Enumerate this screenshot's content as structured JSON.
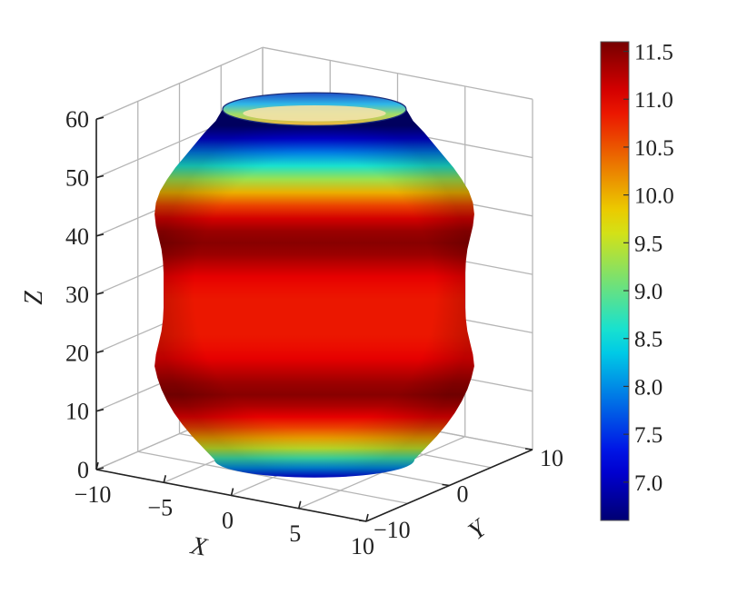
{
  "chart_data": {
    "type": "surface3d",
    "title": "",
    "xlabel": "X",
    "ylabel": "Y",
    "zlabel": "Z",
    "x_ticks": [
      "−10",
      "−5",
      "0",
      "5",
      "10"
    ],
    "y_ticks": [
      "−10",
      "0",
      "10"
    ],
    "z_ticks": [
      "0",
      "10",
      "20",
      "30",
      "40",
      "50",
      "60"
    ],
    "xlim": [
      -10,
      10
    ],
    "ylim": [
      -10,
      10
    ],
    "zlim": [
      0,
      60
    ],
    "grid": true,
    "colormap": "jet",
    "color_range": [
      6.6,
      11.6
    ],
    "colorbar_ticks": [
      "11.5",
      "11.0",
      "10.5",
      "10.0",
      "9.5",
      "9.0",
      "8.5",
      "8.0",
      "7.5",
      "7.0"
    ],
    "colorbar_tick_values": [
      11.5,
      11.0,
      10.5,
      10.0,
      9.5,
      9.0,
      8.5,
      8.0,
      7.5,
      7.0
    ],
    "profile": {
      "z": [
        0,
        2,
        4,
        6,
        8,
        10,
        12,
        14,
        16,
        18,
        20,
        22,
        24,
        26,
        28,
        30,
        32,
        34,
        36,
        38,
        40,
        42,
        44,
        46,
        48,
        50,
        52,
        54,
        56,
        58,
        60
      ],
      "radius": [
        7.2,
        8.0,
        8.8,
        9.5,
        10.1,
        10.6,
        11.0,
        11.3,
        11.5,
        11.4,
        11.2,
        11.0,
        10.9,
        10.85,
        10.85,
        10.85,
        10.85,
        10.9,
        11.0,
        11.2,
        11.4,
        11.5,
        11.4,
        11.1,
        10.6,
        10.0,
        9.3,
        8.6,
        7.9,
        7.1,
        6.6
      ]
    }
  }
}
